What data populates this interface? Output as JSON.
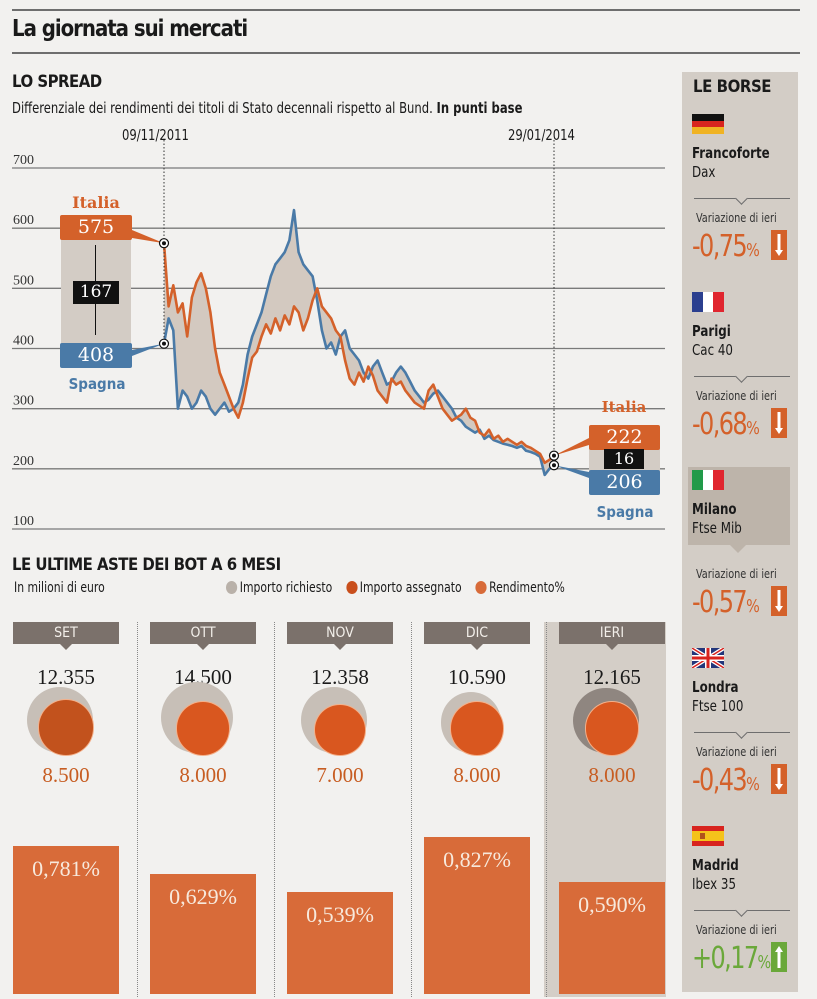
{
  "header": {
    "title": "La giornata sui mercati"
  },
  "spread": {
    "title": "LO SPREAD",
    "subtitle": "Differenziale dei rendimenti dei titoli di Stato decennali rispetto al Bund.",
    "subtitle_bold": "In punti base",
    "start_date": "09/11/2011",
    "end_date": "29/01/2014",
    "start": {
      "italia_label": "Italia",
      "italia_value": "575",
      "spagna_label": "Spagna",
      "spagna_value": "408",
      "diff": "167"
    },
    "end": {
      "italia_label": "Italia",
      "italia_value": "222",
      "spagna_label": "Spagna",
      "spagna_value": "206",
      "diff": "16"
    }
  },
  "chart_data": [
    {
      "type": "line",
      "title": "LO SPREAD",
      "ylabel": "punti base",
      "ylim": [
        100,
        700
      ],
      "yticks": [
        "700",
        "600",
        "500",
        "400",
        "300",
        "200",
        "100"
      ],
      "grid": true,
      "x_range": [
        "09/11/2011",
        "29/01/2014"
      ],
      "series": [
        {
          "name": "Italia",
          "color": "#d4612a",
          "values": [
            575,
            470,
            505,
            460,
            475,
            420,
            485,
            510,
            525,
            500,
            460,
            400,
            360,
            340,
            320,
            300,
            285,
            310,
            350,
            385,
            395,
            420,
            440,
            425,
            450,
            430,
            455,
            440,
            470,
            460,
            430,
            450,
            480,
            500,
            470,
            460,
            450,
            430,
            420,
            380,
            350,
            340,
            360,
            345,
            370,
            355,
            330,
            320,
            310,
            350,
            340,
            345,
            330,
            320,
            310,
            305,
            300,
            330,
            340,
            320,
            300,
            290,
            280,
            285,
            290,
            300,
            285,
            280,
            260,
            255,
            265,
            250,
            255,
            245,
            250,
            245,
            240,
            245,
            238,
            235,
            230,
            225,
            210,
            215,
            222
          ]
        },
        {
          "name": "Spagna",
          "color": "#4a7aa7",
          "values": [
            408,
            450,
            430,
            300,
            330,
            320,
            300,
            310,
            330,
            320,
            300,
            290,
            300,
            310,
            295,
            300,
            310,
            340,
            390,
            420,
            440,
            460,
            490,
            520,
            540,
            550,
            560,
            580,
            630,
            560,
            540,
            530,
            520,
            480,
            430,
            400,
            410,
            390,
            420,
            430,
            400,
            390,
            380,
            360,
            350,
            370,
            380,
            360,
            340,
            345,
            360,
            370,
            360,
            345,
            330,
            320,
            310,
            315,
            325,
            330,
            320,
            310,
            300,
            285,
            280,
            270,
            265,
            260,
            265,
            250,
            255,
            248,
            245,
            242,
            240,
            238,
            235,
            238,
            230,
            228,
            225,
            220,
            190,
            200,
            206
          ]
        }
      ]
    },
    {
      "type": "bar",
      "title": "LE ULTIME ASTE DEI BOT A 6 MESI",
      "subtitle": "In milioni di euro",
      "categories": [
        "SET",
        "OTT",
        "NOV",
        "DIC",
        "IERI"
      ],
      "legend": [
        "Importo richiesto",
        "Importo assegnato",
        "Rendimento%"
      ],
      "series": [
        {
          "name": "Importo richiesto",
          "values": [
            12355,
            14500,
            12358,
            10590,
            12165
          ],
          "labels": [
            "12.355",
            "14.500",
            "12.358",
            "10.590",
            "12.165"
          ]
        },
        {
          "name": "Importo assegnato",
          "values": [
            8500,
            8000,
            7000,
            8000,
            8000
          ],
          "labels": [
            "8.500",
            "8.000",
            "7.000",
            "8.000",
            "8.000"
          ]
        },
        {
          "name": "Rendimento%",
          "values": [
            0.781,
            0.629,
            0.539,
            0.827,
            0.59
          ],
          "labels": [
            "0,781%",
            "0,629%",
            "0,539%",
            "0,827%",
            "0,590%"
          ]
        }
      ]
    }
  ],
  "aste": {
    "title": "LE ULTIME ASTE DEI BOT A 6 MESI",
    "subtitle": "In milioni di euro",
    "legend": [
      {
        "label": "Importo richiesto",
        "color": "#b9b1a9"
      },
      {
        "label": "Importo assegnato",
        "color": "#c94f1c"
      },
      {
        "label": "Rendimento%",
        "color": "#d86b39"
      }
    ],
    "columns": [
      {
        "month": "SET",
        "richiesto": "12.355",
        "assegnato": "8.500",
        "rendimento": "0,781%"
      },
      {
        "month": "OTT",
        "richiesto": "14.500",
        "assegnato": "8.000",
        "rendimento": "0,629%"
      },
      {
        "month": "NOV",
        "richiesto": "12.358",
        "assegnato": "7.000",
        "rendimento": "0,539%"
      },
      {
        "month": "DIC",
        "richiesto": "10.590",
        "assegnato": "8.000",
        "rendimento": "0,827%"
      },
      {
        "month": "IERI",
        "richiesto": "12.165",
        "assegnato": "8.000",
        "rendimento": "0,590%"
      }
    ]
  },
  "borse": {
    "title": "LE BORSE",
    "variation_label": "Variazione di ieri",
    "down_color": "#d4612a",
    "up_color": "#6aa83a",
    "markets": [
      {
        "city": "Francoforte",
        "index": "Dax",
        "flag": "germany-flag-icon",
        "variation": "-0,75",
        "pct": "%",
        "direction": "down"
      },
      {
        "city": "Parigi",
        "index": "Cac 40",
        "flag": "france-flag-icon",
        "variation": "-0,68",
        "pct": "%",
        "direction": "down"
      },
      {
        "city": "Milano",
        "index": "Ftse Mib",
        "flag": "italy-flag-icon",
        "variation": "-0,57",
        "pct": "%",
        "direction": "down"
      },
      {
        "city": "Londra",
        "index": "Ftse 100",
        "flag": "uk-flag-icon",
        "variation": "-0,43",
        "pct": "%",
        "direction": "down"
      },
      {
        "city": "Madrid",
        "index": "Ibex 35",
        "flag": "spain-flag-icon",
        "variation": "+0,17",
        "pct": "%",
        "direction": "up"
      }
    ]
  }
}
